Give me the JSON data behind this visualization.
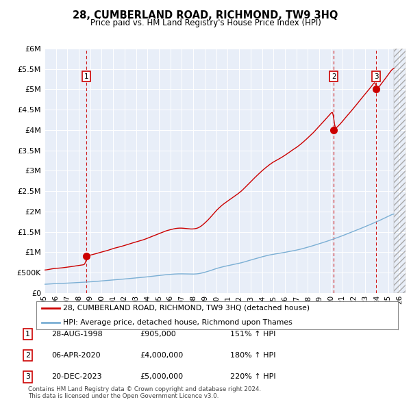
{
  "title": "28, CUMBERLAND ROAD, RICHMOND, TW9 3HQ",
  "subtitle": "Price paid vs. HM Land Registry's House Price Index (HPI)",
  "ylim": [
    0,
    6000000
  ],
  "yticks": [
    0,
    500000,
    1000000,
    1500000,
    2000000,
    2500000,
    3000000,
    3500000,
    4000000,
    4500000,
    5000000,
    5500000,
    6000000
  ],
  "xlim_start": 1995.0,
  "xlim_end": 2026.5,
  "sale_dates": [
    1998.66,
    2020.26,
    2023.97
  ],
  "sale_prices": [
    905000,
    4000000,
    5000000
  ],
  "sale_labels": [
    "1",
    "2",
    "3"
  ],
  "hpi_color": "#7bafd4",
  "price_color": "#cc0000",
  "vline_color": "#cc0000",
  "bg_chart": "#e8eef8",
  "legend_entries": [
    "28, CUMBERLAND ROAD, RICHMOND, TW9 3HQ (detached house)",
    "HPI: Average price, detached house, Richmond upon Thames"
  ],
  "table_rows": [
    [
      "1",
      "28-AUG-1998",
      "£905,000",
      "151% ↑ HPI"
    ],
    [
      "2",
      "06-APR-2020",
      "£4,000,000",
      "180% ↑ HPI"
    ],
    [
      "3",
      "20-DEC-2023",
      "£5,000,000",
      "220% ↑ HPI"
    ]
  ],
  "footer": "Contains HM Land Registry data © Crown copyright and database right 2024.\nThis data is licensed under the Open Government Licence v3.0.",
  "background_color": "#ffffff"
}
